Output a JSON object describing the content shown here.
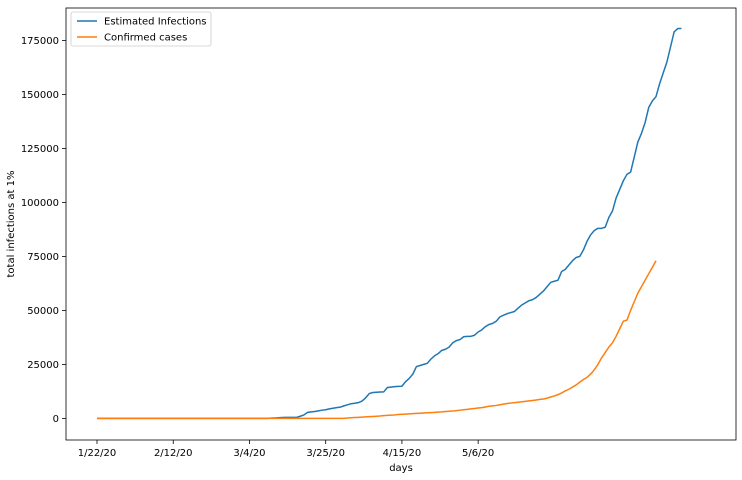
{
  "chart_data": {
    "type": "line",
    "title": "",
    "xlabel": "days",
    "ylabel": "total infections at 1%",
    "x_start_label": "1/22/20",
    "x_tick_labels": [
      "1/22/20",
      "2/12/20",
      "3/4/20",
      "3/25/20",
      "4/15/20",
      "5/6/20"
    ],
    "y_ticks": [
      0,
      25000,
      50000,
      75000,
      100000,
      125000,
      150000,
      175000
    ],
    "ylim": [
      -10000,
      190000
    ],
    "grid": false,
    "legend_position": "top-left",
    "series": [
      {
        "name": "Estimated Infections",
        "color": "#1f77b4",
        "values": [
          0,
          0,
          0,
          0,
          0,
          0,
          0,
          0,
          0,
          0,
          0,
          0,
          0,
          0,
          0,
          0,
          0,
          0,
          0,
          0,
          0,
          0,
          0,
          0,
          0,
          0,
          0,
          0,
          0,
          0,
          0,
          0,
          0,
          0,
          0,
          0,
          0,
          0,
          0,
          0,
          0,
          0,
          0,
          0,
          0,
          0,
          0,
          0,
          100,
          200,
          300,
          400,
          500,
          500,
          500,
          500,
          1000,
          1600,
          2800,
          3000,
          3200,
          3500,
          3800,
          4000,
          4400,
          4700,
          5000,
          5200,
          5800,
          6300,
          6800,
          7000,
          7300,
          8000,
          9500,
          11500,
          12000,
          12100,
          12200,
          12300,
          14300,
          14500,
          14700,
          14800,
          14900,
          17000,
          18500,
          20500,
          24000,
          24500,
          25000,
          25500,
          27500,
          29000,
          30000,
          31500,
          32000,
          33000,
          35000,
          36000,
          36500,
          37800,
          38000,
          38000,
          38500,
          40000,
          41000,
          42500,
          43500,
          44000,
          45000,
          47000,
          47800,
          48500,
          49000,
          49500,
          51000,
          52500,
          53500,
          54500,
          55000,
          56000,
          57500,
          59000,
          61000,
          63000,
          63500,
          64000,
          68000,
          69000,
          71000,
          73000,
          74500,
          75000,
          78000,
          82000,
          85000,
          87000,
          88000,
          88000,
          88500,
          93000,
          96000,
          102000,
          106000,
          110000,
          113000,
          114000,
          121000,
          128000,
          132000,
          137000,
          144000,
          147000,
          149000,
          155000,
          160000,
          165000,
          172000,
          179000,
          180500,
          180500
        ]
      },
      {
        "name": "Confirmed cases",
        "color": "#ff7f0e",
        "values": [
          0,
          0,
          0,
          0,
          0,
          0,
          0,
          0,
          0,
          0,
          0,
          0,
          0,
          0,
          0,
          0,
          0,
          0,
          0,
          0,
          0,
          0,
          0,
          0,
          0,
          0,
          0,
          0,
          0,
          0,
          0,
          0,
          0,
          0,
          0,
          0,
          0,
          0,
          0,
          0,
          0,
          0,
          0,
          0,
          0,
          0,
          0,
          0,
          0,
          0,
          0,
          0,
          0,
          0,
          0,
          0,
          0,
          0,
          0,
          0,
          0,
          0,
          0,
          0,
          0,
          0,
          0,
          0,
          0,
          200,
          300,
          400,
          500,
          600,
          700,
          800,
          900,
          1000,
          1100,
          1300,
          1400,
          1500,
          1600,
          1800,
          1900,
          2000,
          2100,
          2200,
          2300,
          2400,
          2500,
          2600,
          2700,
          2800,
          2900,
          3000,
          3200,
          3300,
          3400,
          3600,
          3800,
          4000,
          4200,
          4400,
          4600,
          4800,
          5000,
          5300,
          5600,
          5800,
          6000,
          6300,
          6600,
          6900,
          7100,
          7300,
          7500,
          7700,
          7900,
          8100,
          8300,
          8500,
          8800,
          9000,
          9400,
          9900,
          10400,
          11000,
          11800,
          12700,
          13500,
          14500,
          15500,
          16800,
          18000,
          19000,
          20500,
          22500,
          25000,
          28000,
          30500,
          33000,
          35000,
          38000,
          41500,
          45000,
          45500,
          50000,
          54000,
          58000,
          61000,
          64000,
          67000,
          70000,
          73000
        ]
      }
    ]
  }
}
